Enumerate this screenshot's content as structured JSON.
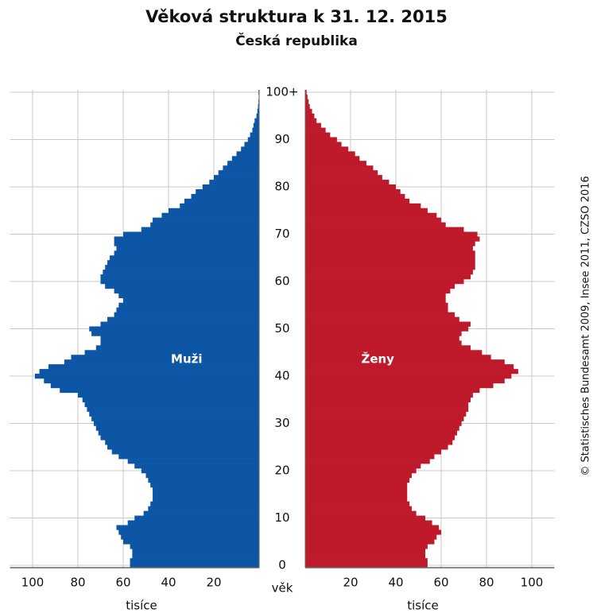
{
  "chart_data": {
    "type": "pyramid",
    "title": "Věková struktura k 31. 12. 2015",
    "subtitle": "Česká republika",
    "age_label": "věk",
    "value_label": "tisíce",
    "note": "© Statistisches Bundesamt 2009, Insee 2011, CZSO 2016",
    "ages": [
      0,
      1,
      2,
      3,
      4,
      5,
      6,
      7,
      8,
      9,
      10,
      11,
      12,
      13,
      14,
      15,
      16,
      17,
      18,
      19,
      20,
      21,
      22,
      23,
      24,
      25,
      26,
      27,
      28,
      29,
      30,
      31,
      32,
      33,
      34,
      35,
      36,
      37,
      38,
      39,
      40,
      41,
      42,
      43,
      44,
      45,
      46,
      47,
      48,
      49,
      50,
      51,
      52,
      53,
      54,
      55,
      56,
      57,
      58,
      59,
      60,
      61,
      62,
      63,
      64,
      65,
      66,
      67,
      68,
      69,
      70,
      71,
      72,
      73,
      74,
      75,
      76,
      77,
      78,
      79,
      80,
      81,
      82,
      83,
      84,
      85,
      86,
      87,
      88,
      89,
      90,
      91,
      92,
      93,
      94,
      95,
      96,
      97,
      98,
      99,
      100
    ],
    "agelim": [
      -0.5,
      100.5
    ],
    "ageticks": [
      0,
      10,
      20,
      30,
      40,
      50,
      60,
      70,
      80,
      90,
      {
        "value": 100,
        "label": "100+"
      }
    ],
    "valuelim": [
      0,
      110
    ],
    "valueticks": [
      20,
      40,
      60,
      80,
      100
    ],
    "grid": true,
    "series": [
      {
        "name": "Muži",
        "side": "left",
        "color": "#0d56a6",
        "values": [
          57,
          57,
          56,
          56,
          57,
          60,
          61,
          62,
          63,
          58,
          55,
          51,
          49,
          48,
          47,
          47,
          47,
          48,
          49,
          50,
          52,
          55,
          58,
          62,
          65,
          67,
          68,
          70,
          71,
          72,
          73,
          74,
          75,
          76,
          77,
          78,
          80,
          88,
          92,
          95,
          99,
          97,
          93,
          86,
          83,
          77,
          72,
          70,
          70,
          74,
          75,
          70,
          67,
          64,
          63,
          62,
          60,
          62,
          64,
          68,
          70,
          70,
          69,
          68,
          67,
          66,
          64,
          63,
          64,
          64,
          60,
          52,
          48,
          47,
          43,
          40,
          35,
          33,
          30,
          28,
          25,
          22,
          20,
          18,
          16,
          14,
          12,
          10,
          8,
          6.5,
          5,
          4,
          3,
          2.5,
          2,
          1.2,
          0.8,
          0.5,
          0.3,
          0.2,
          0.3
        ]
      },
      {
        "name": "Ženy",
        "side": "right",
        "color": "#be1a2b",
        "values": [
          54,
          54,
          53,
          53,
          54,
          57,
          58,
          60,
          59,
          56,
          53,
          49,
          47,
          46,
          45,
          45,
          45,
          45,
          46,
          47,
          49,
          51,
          55,
          57,
          60,
          63,
          65,
          66,
          67,
          68,
          69,
          70,
          71,
          72,
          72,
          73,
          74,
          77,
          83,
          88,
          91,
          94,
          92,
          88,
          82,
          78,
          73,
          69,
          68,
          69,
          72,
          73,
          68,
          66,
          63,
          63,
          62,
          62,
          64,
          66,
          70,
          73,
          74,
          75,
          75,
          75,
          75,
          74,
          75,
          77,
          76,
          70,
          62,
          60,
          58,
          54,
          51,
          46,
          44,
          42,
          40,
          37,
          34,
          32,
          30,
          27,
          24,
          22,
          19,
          16,
          14,
          11,
          9,
          7,
          5,
          4,
          3,
          2,
          1.5,
          1,
          0.6
        ]
      }
    ]
  }
}
